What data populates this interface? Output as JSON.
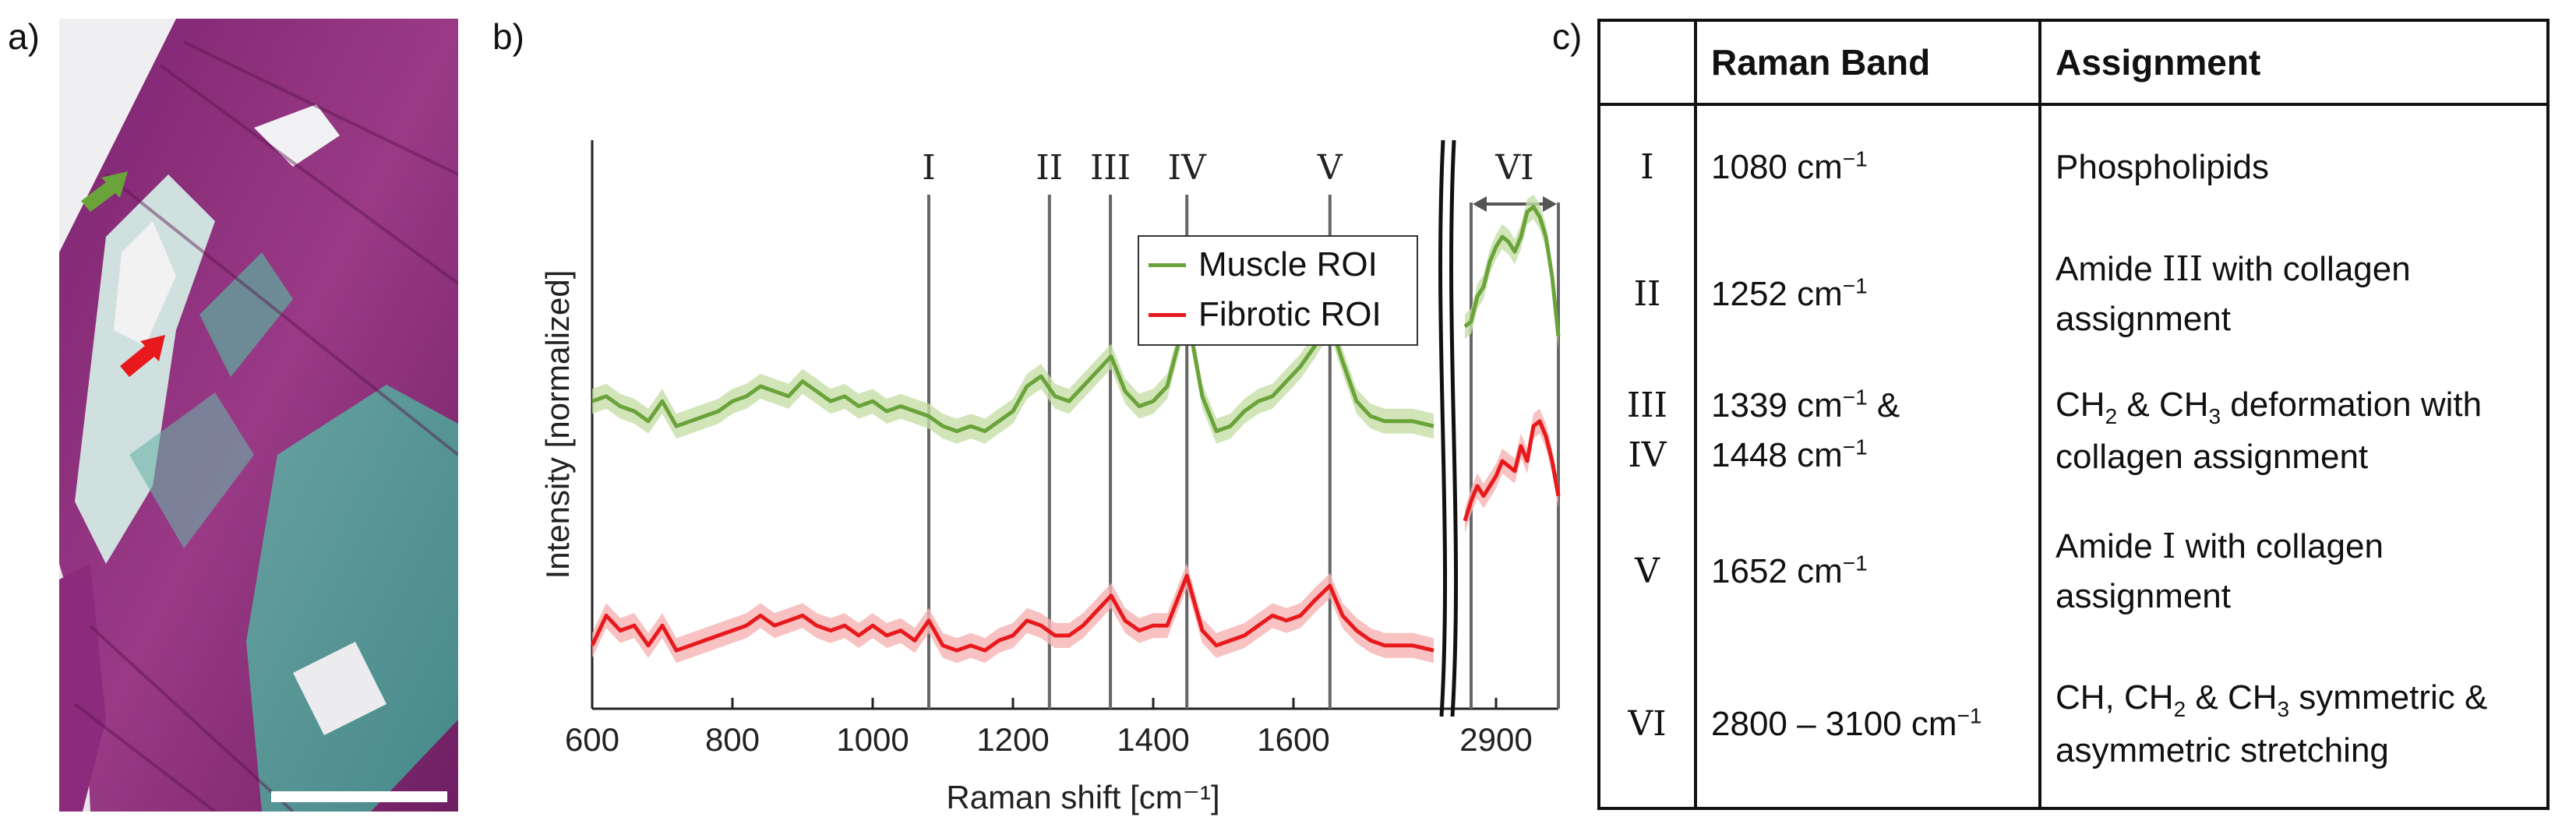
{
  "panels": {
    "a": {
      "label": "a)"
    },
    "b": {
      "label": "b)"
    },
    "c": {
      "label": "c)"
    }
  },
  "chart_data": {
    "type": "line",
    "xlabel": "Raman shift [cm⁻¹]",
    "ylabel": "Intensity [normalized]",
    "x_ticks_main": [
      "600",
      "800",
      "1000",
      "1200",
      "1400",
      "1600"
    ],
    "x_ticks_high": [
      "2900"
    ],
    "xlim_main": [
      600,
      1800
    ],
    "xlim_high": [
      2800,
      3100
    ],
    "axis_break": true,
    "legend": [
      {
        "name": "Muscle ROI",
        "color": "#6aa33a"
      },
      {
        "name": "Fibrotic ROI",
        "color": "#e8191d"
      }
    ],
    "band_markers": [
      {
        "label": "I",
        "x": 1080
      },
      {
        "label": "II",
        "x": 1252
      },
      {
        "label": "III",
        "x": 1339
      },
      {
        "label": "IV",
        "x": 1448
      },
      {
        "label": "V",
        "x": 1652
      }
    ],
    "band_range": {
      "label": "VI",
      "x": [
        2820,
        3100
      ]
    },
    "series": [
      {
        "name": "Muscle ROI",
        "color": "#6aa33a",
        "band_color": "#c5dfa8",
        "x": [
          600,
          620,
          640,
          660,
          680,
          700,
          720,
          740,
          760,
          780,
          800,
          820,
          840,
          860,
          880,
          900,
          920,
          940,
          960,
          980,
          1000,
          1020,
          1040,
          1060,
          1080,
          1100,
          1120,
          1140,
          1160,
          1180,
          1200,
          1220,
          1240,
          1260,
          1280,
          1300,
          1320,
          1340,
          1360,
          1380,
          1400,
          1420,
          1448,
          1470,
          1490,
          1510,
          1530,
          1550,
          1570,
          1590,
          1610,
          1630,
          1652,
          1670,
          1690,
          1710,
          1730,
          1750,
          1770,
          1800
        ],
        "values": [
          0.57,
          0.58,
          0.56,
          0.55,
          0.53,
          0.57,
          0.52,
          0.53,
          0.54,
          0.55,
          0.57,
          0.58,
          0.6,
          0.59,
          0.58,
          0.61,
          0.59,
          0.57,
          0.58,
          0.56,
          0.57,
          0.55,
          0.56,
          0.55,
          0.54,
          0.52,
          0.51,
          0.52,
          0.51,
          0.53,
          0.55,
          0.6,
          0.62,
          0.58,
          0.57,
          0.6,
          0.63,
          0.66,
          0.59,
          0.56,
          0.57,
          0.6,
          0.75,
          0.58,
          0.51,
          0.52,
          0.55,
          0.57,
          0.58,
          0.61,
          0.64,
          0.68,
          0.73,
          0.65,
          0.57,
          0.54,
          0.53,
          0.53,
          0.53,
          0.52
        ],
        "x_high": [
          2800,
          2820,
          2840,
          2860,
          2880,
          2900,
          2920,
          2940,
          2960,
          2980,
          3000,
          3020,
          3040,
          3060,
          3080,
          3100
        ],
        "values_high": [
          0.72,
          0.73,
          0.78,
          0.8,
          0.85,
          0.88,
          0.9,
          0.89,
          0.87,
          0.9,
          0.95,
          0.96,
          0.94,
          0.9,
          0.82,
          0.7
        ]
      },
      {
        "name": "Fibrotic ROI",
        "color": "#e8191d",
        "band_color": "#f5b3b2",
        "x": [
          600,
          620,
          640,
          660,
          680,
          700,
          720,
          740,
          760,
          780,
          800,
          820,
          840,
          860,
          880,
          900,
          920,
          940,
          960,
          980,
          1000,
          1020,
          1040,
          1060,
          1080,
          1100,
          1120,
          1140,
          1160,
          1180,
          1200,
          1220,
          1240,
          1260,
          1280,
          1300,
          1320,
          1340,
          1360,
          1380,
          1400,
          1420,
          1448,
          1470,
          1490,
          1510,
          1530,
          1550,
          1570,
          1590,
          1610,
          1630,
          1652,
          1670,
          1690,
          1710,
          1730,
          1750,
          1770,
          1800
        ],
        "values": [
          0.08,
          0.14,
          0.11,
          0.12,
          0.08,
          0.12,
          0.07,
          0.08,
          0.09,
          0.1,
          0.11,
          0.12,
          0.14,
          0.12,
          0.13,
          0.14,
          0.12,
          0.11,
          0.12,
          0.1,
          0.12,
          0.1,
          0.11,
          0.09,
          0.13,
          0.08,
          0.07,
          0.08,
          0.07,
          0.09,
          0.1,
          0.13,
          0.12,
          0.1,
          0.1,
          0.12,
          0.15,
          0.18,
          0.13,
          0.11,
          0.12,
          0.12,
          0.22,
          0.11,
          0.08,
          0.09,
          0.1,
          0.12,
          0.14,
          0.13,
          0.14,
          0.17,
          0.2,
          0.14,
          0.11,
          0.09,
          0.08,
          0.08,
          0.08,
          0.07
        ],
        "x_high": [
          2800,
          2820,
          2840,
          2860,
          2880,
          2900,
          2920,
          2940,
          2960,
          2980,
          3000,
          3020,
          3040,
          3060,
          3080,
          3100
        ],
        "values_high": [
          0.33,
          0.37,
          0.4,
          0.38,
          0.4,
          0.42,
          0.45,
          0.44,
          0.43,
          0.48,
          0.45,
          0.52,
          0.53,
          0.5,
          0.45,
          0.38
        ]
      }
    ],
    "ylim": [
      0.0,
      1.0
    ]
  },
  "table": {
    "headers": [
      "",
      "Raman Band",
      "Assignment"
    ],
    "rows": [
      {
        "roman": "I",
        "band": "1080 cm",
        "band_sup": "−1",
        "assignment": "Phospholipids"
      },
      {
        "roman": "II",
        "band": "1252 cm",
        "band_sup": "−1",
        "assignment_1": "Amide ",
        "assignment_roman": "III",
        "assignment_2": " with collagen assignment"
      },
      {
        "roman_1": "III",
        "roman_2": "IV",
        "band_1": "1339 cm",
        "band_1_sup": "−1",
        "band_1_tail": " &",
        "band_2": "1448 cm",
        "band_2_sup": "−1",
        "assignment_a": "CH",
        "assignment_a_sub": "2",
        "assignment_b": " & CH",
        "assignment_b_sub": "3",
        "assignment_c": " deformation with collagen assignment"
      },
      {
        "roman": "V",
        "band": "1652 cm",
        "band_sup": "−1",
        "assignment_1": "Amide ",
        "assignment_roman": "I",
        "assignment_2": " with collagen assignment"
      },
      {
        "roman": "VI",
        "band": "2800 – 3100 cm",
        "band_sup": "−1",
        "assignment_a": "CH, CH",
        "assignment_a_sub": "2",
        "assignment_b": " & CH",
        "assignment_b_sub": "3",
        "assignment_c": " symmetric & asymmetric stretching"
      }
    ]
  },
  "colors": {
    "muscle": "#6aa33a",
    "fibrotic": "#e8191d",
    "tissue_magenta": "#8a2a78",
    "tissue_cyan": "#5fb3a6"
  }
}
